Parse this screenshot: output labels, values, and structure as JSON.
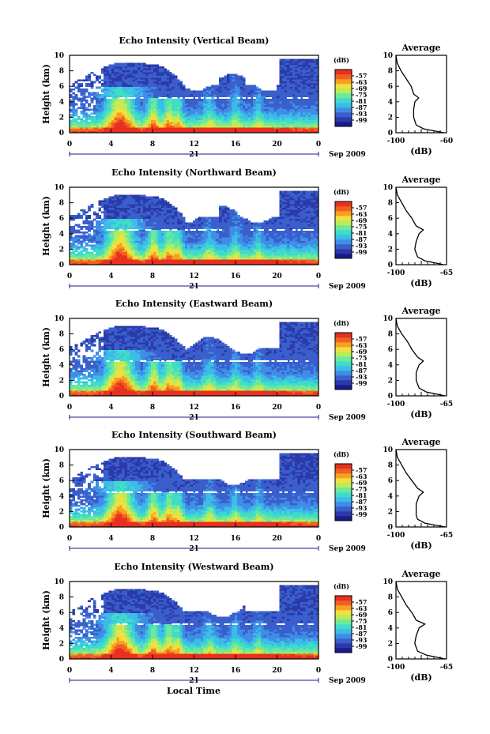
{
  "figure": {
    "xlabel": "Local Time",
    "day_label": "21",
    "month_label": "Sep 2009"
  },
  "colorbar": {
    "unit": "(dB)",
    "ticks": [
      "-57",
      "-63",
      "-69",
      "-75",
      "-81",
      "-87",
      "-93",
      "-99"
    ],
    "colors": [
      "#1a1a8c",
      "#2a3aa8",
      "#3a5fcc",
      "#3f8ee6",
      "#3cbce8",
      "#3fdcc8",
      "#6ee89a",
      "#b8ec5a",
      "#f0e040",
      "#f8a020",
      "#f06020",
      "#e83020"
    ]
  },
  "chart_data": [
    {
      "type": "heatmap",
      "title": "Echo Intensity (Vertical Beam)",
      "xlabel": "Local Time",
      "ylabel": "Height (km)",
      "xlim": [
        0,
        24
      ],
      "ylim": [
        0,
        10
      ],
      "x_ticks": [
        "0",
        "4",
        "8",
        "12",
        "16",
        "20",
        "0"
      ],
      "y_ticks": [
        "0",
        "2",
        "4",
        "6",
        "8",
        "10"
      ],
      "profile": {
        "title": "Average",
        "xlabel": "(dB)",
        "xlim": [
          -100,
          -60
        ],
        "x_ticks": [
          "-100",
          "-60"
        ],
        "height": [
          0,
          0.5,
          1,
          1.5,
          2,
          3,
          4,
          4.5,
          5,
          6,
          7,
          8,
          9,
          10
        ],
        "value": [
          -62,
          -78,
          -84,
          -85,
          -86,
          -86,
          -85,
          -82,
          -86,
          -88,
          -92,
          -96,
          -99,
          -100
        ]
      }
    },
    {
      "type": "heatmap",
      "title": "Echo Intensity (Northward Beam)",
      "xlabel": "Local Time",
      "ylabel": "Height (km)",
      "xlim": [
        0,
        24
      ],
      "ylim": [
        0,
        10
      ],
      "x_ticks": [
        "0",
        "4",
        "8",
        "12",
        "16",
        "20",
        "0"
      ],
      "y_ticks": [
        "0",
        "2",
        "4",
        "6",
        "8",
        "10"
      ],
      "profile": {
        "title": "Average",
        "xlabel": "(dB)",
        "xlim": [
          -100,
          -65
        ],
        "x_ticks": [
          "-100",
          "-65"
        ],
        "height": [
          0,
          0.5,
          1,
          1.5,
          2,
          3,
          4,
          4.5,
          5,
          6,
          7,
          8,
          9,
          10
        ],
        "value": [
          -67,
          -80,
          -85,
          -86,
          -87,
          -86,
          -84,
          -81,
          -86,
          -89,
          -93,
          -96,
          -99,
          -100
        ]
      }
    },
    {
      "type": "heatmap",
      "title": "Echo Intensity (Eastward Beam)",
      "xlabel": "Local Time",
      "ylabel": "Height (km)",
      "xlim": [
        0,
        24
      ],
      "ylim": [
        0,
        10
      ],
      "x_ticks": [
        "0",
        "4",
        "8",
        "12",
        "16",
        "20",
        "0"
      ],
      "y_ticks": [
        "0",
        "2",
        "4",
        "6",
        "8",
        "10"
      ],
      "profile": {
        "title": "Average",
        "xlabel": "(dB)",
        "xlim": [
          -100,
          -65
        ],
        "x_ticks": [
          "-100",
          "-65"
        ],
        "height": [
          0,
          0.5,
          1,
          1.5,
          2,
          3,
          4,
          4.5,
          5,
          6,
          7,
          8,
          9,
          10
        ],
        "value": [
          -66,
          -79,
          -84,
          -85,
          -86,
          -86,
          -84,
          -81,
          -85,
          -89,
          -92,
          -96,
          -99,
          -100
        ]
      }
    },
    {
      "type": "heatmap",
      "title": "Echo Intensity (Southward Beam)",
      "xlabel": "Local Time",
      "ylabel": "Height (km)",
      "xlim": [
        0,
        24
      ],
      "ylim": [
        0,
        10
      ],
      "x_ticks": [
        "0",
        "4",
        "8",
        "12",
        "16",
        "20",
        "0"
      ],
      "y_ticks": [
        "0",
        "2",
        "4",
        "6",
        "8",
        "10"
      ],
      "profile": {
        "title": "Average",
        "xlabel": "(dB)",
        "xlim": [
          -100,
          -65
        ],
        "x_ticks": [
          "-100",
          "-65"
        ],
        "height": [
          0,
          0.5,
          1,
          1.5,
          2,
          3,
          4,
          4.5,
          5,
          6,
          7,
          8,
          9,
          10
        ],
        "value": [
          -66,
          -80,
          -85,
          -86,
          -86,
          -86,
          -84,
          -81,
          -85,
          -89,
          -93,
          -96,
          -99,
          -100
        ]
      }
    },
    {
      "type": "heatmap",
      "title": "Echo Intensity (Westward Beam)",
      "xlabel": "Local Time",
      "ylabel": "Height (km)",
      "xlim": [
        0,
        24
      ],
      "ylim": [
        0,
        10
      ],
      "x_ticks": [
        "0",
        "4",
        "8",
        "12",
        "16",
        "20",
        "0"
      ],
      "y_ticks": [
        "0",
        "2",
        "4",
        "6",
        "8",
        "10"
      ],
      "profile": {
        "title": "Average",
        "xlabel": "(dB)",
        "xlim": [
          -100,
          -65
        ],
        "x_ticks": [
          "-100",
          "-65"
        ],
        "height": [
          0,
          0.5,
          1,
          1.5,
          2,
          3,
          4,
          4.5,
          5,
          6,
          7,
          8,
          9,
          10
        ],
        "value": [
          -66,
          -79,
          -85,
          -86,
          -87,
          -86,
          -84,
          -80,
          -86,
          -89,
          -93,
          -96,
          -99,
          -100
        ]
      }
    }
  ]
}
